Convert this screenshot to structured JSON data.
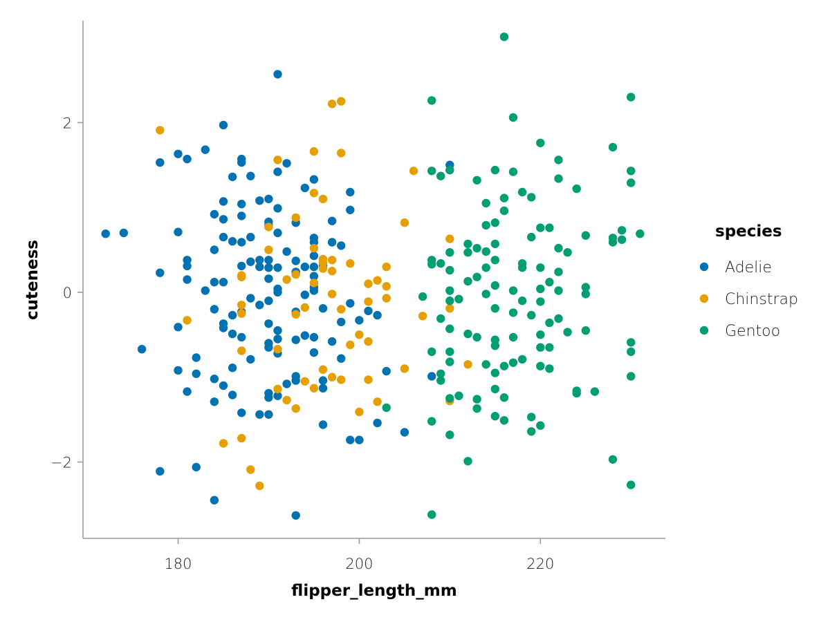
{
  "chart_data": {
    "type": "scatter",
    "xlabel": "flipper_length_mm",
    "ylabel": "cuteness",
    "xlim": [
      169.5,
      233.8
    ],
    "ylim": [
      -2.9,
      3.2
    ],
    "xticks": [
      180,
      200,
      220
    ],
    "yticks": [
      -2,
      0,
      2
    ],
    "xtick_labels": [
      "180",
      "200",
      "220"
    ],
    "ytick_labels": [
      "−2",
      "0",
      "2"
    ],
    "grid": false,
    "legend": {
      "title": "species",
      "placement": "right"
    },
    "series": [
      {
        "name": "Adelie",
        "color": "#0072b2",
        "points": [
          [
            172,
            0.69
          ],
          [
            174,
            0.7
          ],
          [
            176,
            -0.67
          ],
          [
            178,
            0.23
          ],
          [
            178,
            1.53
          ],
          [
            178,
            -2.11
          ],
          [
            180,
            1.63
          ],
          [
            180,
            0.71
          ],
          [
            180,
            -0.41
          ],
          [
            180,
            -0.92
          ],
          [
            181,
            1.57
          ],
          [
            181,
            0.38
          ],
          [
            181,
            0.31
          ],
          [
            181,
            0.15
          ],
          [
            181,
            -1.17
          ],
          [
            182,
            -0.77
          ],
          [
            182,
            -0.96
          ],
          [
            182,
            -2.06
          ],
          [
            183,
            1.68
          ],
          [
            183,
            0.02
          ],
          [
            184,
            0.92
          ],
          [
            184,
            0.5
          ],
          [
            184,
            0.12
          ],
          [
            184,
            -0.2
          ],
          [
            184,
            -1.02
          ],
          [
            184,
            -1.29
          ],
          [
            184,
            -2.45
          ],
          [
            185,
            1.97
          ],
          [
            185,
            1.07
          ],
          [
            185,
            0.86
          ],
          [
            185,
            0.65
          ],
          [
            185,
            0.12
          ],
          [
            185,
            -0.37
          ],
          [
            185,
            -0.42
          ],
          [
            185,
            -1.1
          ],
          [
            186,
            1.36
          ],
          [
            186,
            0.6
          ],
          [
            186,
            -0.27
          ],
          [
            186,
            -0.49
          ],
          [
            186,
            -0.89
          ],
          [
            186,
            -1.21
          ],
          [
            187,
            1.57
          ],
          [
            187,
            1.53
          ],
          [
            187,
            1.04
          ],
          [
            187,
            0.9
          ],
          [
            187,
            0.59
          ],
          [
            187,
            0.31
          ],
          [
            187,
            -0.23
          ],
          [
            187,
            -0.53
          ],
          [
            187,
            -1.42
          ],
          [
            188,
            1.37
          ],
          [
            188,
            0.65
          ],
          [
            188,
            0.36
          ],
          [
            188,
            -0.07
          ],
          [
            188,
            -0.79
          ],
          [
            189,
            1.08
          ],
          [
            189,
            0.38
          ],
          [
            189,
            0.3
          ],
          [
            189,
            -0.15
          ],
          [
            189,
            -1.44
          ],
          [
            190,
            1.1
          ],
          [
            190,
            0.83
          ],
          [
            190,
            0.79
          ],
          [
            190,
            0.38
          ],
          [
            190,
            0.29
          ],
          [
            190,
            0.16
          ],
          [
            190,
            -0.1
          ],
          [
            190,
            -0.37
          ],
          [
            190,
            -0.6
          ],
          [
            190,
            -0.65
          ],
          [
            190,
            -1.19
          ],
          [
            190,
            -1.24
          ],
          [
            190,
            -1.44
          ],
          [
            191,
            2.57
          ],
          [
            191,
            1.42
          ],
          [
            191,
            0.99
          ],
          [
            191,
            0.7
          ],
          [
            191,
            0.29
          ],
          [
            191,
            0.04
          ],
          [
            191,
            0.0
          ],
          [
            191,
            -0.45
          ],
          [
            191,
            -0.55
          ],
          [
            191,
            -0.72
          ],
          [
            191,
            -1.22
          ],
          [
            192,
            1.52
          ],
          [
            192,
            0.48
          ],
          [
            192,
            -1.08
          ],
          [
            193,
            0.82
          ],
          [
            193,
            0.37
          ],
          [
            193,
            0.24
          ],
          [
            193,
            0.23
          ],
          [
            193,
            -0.23
          ],
          [
            193,
            -0.56
          ],
          [
            193,
            -0.99
          ],
          [
            193,
            -1.04
          ],
          [
            193,
            -2.63
          ],
          [
            194,
            1.23
          ],
          [
            194,
            0.3
          ],
          [
            194,
            -0.03
          ],
          [
            194,
            -0.51
          ],
          [
            195,
            1.33
          ],
          [
            195,
            0.64
          ],
          [
            195,
            0.59
          ],
          [
            195,
            0.43
          ],
          [
            195,
            0.3
          ],
          [
            195,
            0.19
          ],
          [
            195,
            0.06
          ],
          [
            195,
            0.02
          ],
          [
            195,
            -0.53
          ],
          [
            195,
            -0.71
          ],
          [
            196,
            0.31
          ],
          [
            196,
            -0.19
          ],
          [
            196,
            -1.04
          ],
          [
            196,
            -1.13
          ],
          [
            196,
            -1.56
          ],
          [
            197,
            0.84
          ],
          [
            197,
            0.59
          ],
          [
            197,
            -0.58
          ],
          [
            198,
            0.55
          ],
          [
            198,
            -0.35
          ],
          [
            198,
            -0.78
          ],
          [
            199,
            1.18
          ],
          [
            199,
            0.97
          ],
          [
            199,
            -0.13
          ],
          [
            199,
            -1.74
          ],
          [
            200,
            -0.33
          ],
          [
            200,
            -1.74
          ],
          [
            201,
            -0.22
          ],
          [
            202,
            -0.27
          ],
          [
            202,
            -1.54
          ],
          [
            203,
            -0.93
          ],
          [
            205,
            -1.65
          ],
          [
            208,
            -0.99
          ],
          [
            210,
            1.5
          ]
        ]
      },
      {
        "name": "Chinstrap",
        "color": "#e69f00",
        "points": [
          [
            178,
            1.91
          ],
          [
            181,
            -0.33
          ],
          [
            185,
            -1.78
          ],
          [
            187,
            0.2
          ],
          [
            187,
            0.18
          ],
          [
            187,
            -0.15
          ],
          [
            187,
            -0.25
          ],
          [
            187,
            -0.69
          ],
          [
            187,
            -1.72
          ],
          [
            188,
            -2.09
          ],
          [
            189,
            -2.28
          ],
          [
            190,
            0.77
          ],
          [
            190,
            0.5
          ],
          [
            191,
            1.56
          ],
          [
            191,
            -0.67
          ],
          [
            191,
            -1.14
          ],
          [
            192,
            0.15
          ],
          [
            192,
            -1.27
          ],
          [
            193,
            0.88
          ],
          [
            193,
            0.21
          ],
          [
            193,
            -0.26
          ],
          [
            193,
            -1.37
          ],
          [
            194,
            -0.18
          ],
          [
            194,
            -1.05
          ],
          [
            195,
            1.66
          ],
          [
            195,
            1.17
          ],
          [
            195,
            0.52
          ],
          [
            195,
            0.11
          ],
          [
            195,
            -1.13
          ],
          [
            196,
            1.1
          ],
          [
            196,
            0.39
          ],
          [
            196,
            0.35
          ],
          [
            196,
            0.28
          ],
          [
            196,
            -0.91
          ],
          [
            197,
            0.38
          ],
          [
            197,
            0.25
          ],
          [
            197,
            -0.02
          ],
          [
            197,
            -1.0
          ],
          [
            198,
            2.25
          ],
          [
            198,
            1.64
          ],
          [
            198,
            -0.2
          ],
          [
            198,
            -1.03
          ],
          [
            197,
            2.22
          ],
          [
            199,
            0.34
          ],
          [
            199,
            -0.62
          ],
          [
            200,
            -0.5
          ],
          [
            200,
            -1.41
          ],
          [
            201,
            0.1
          ],
          [
            201,
            -0.11
          ],
          [
            201,
            -0.58
          ],
          [
            201,
            -1.03
          ],
          [
            202,
            0.14
          ],
          [
            202,
            -1.29
          ],
          [
            203,
            0.3
          ],
          [
            203,
            0.07
          ],
          [
            203,
            -0.07
          ],
          [
            205,
            0.82
          ],
          [
            205,
            -0.9
          ],
          [
            206,
            1.43
          ],
          [
            207,
            -0.28
          ],
          [
            210,
            0.63
          ],
          [
            210,
            -0.19
          ],
          [
            210,
            -1.28
          ],
          [
            212,
            -0.85
          ]
        ]
      },
      {
        "name": "Gentoo",
        "color": "#009e73",
        "points": [
          [
            203,
            -1.36
          ],
          [
            207,
            -0.05
          ],
          [
            208,
            2.26
          ],
          [
            208,
            1.43
          ],
          [
            208,
            0.38
          ],
          [
            208,
            0.33
          ],
          [
            208,
            -0.7
          ],
          [
            208,
            -1.52
          ],
          [
            208,
            -2.62
          ],
          [
            209,
            1.37
          ],
          [
            209,
            0.34
          ],
          [
            209,
            -0.31
          ],
          [
            209,
            -0.96
          ],
          [
            209,
            -1.04
          ],
          [
            210,
            1.44
          ],
          [
            210,
            0.47
          ],
          [
            210,
            0.26
          ],
          [
            210,
            0.02
          ],
          [
            210,
            -0.1
          ],
          [
            210,
            -0.43
          ],
          [
            210,
            -0.7
          ],
          [
            210,
            -0.82
          ],
          [
            210,
            -1.25
          ],
          [
            210,
            -1.68
          ],
          [
            211,
            -0.08
          ],
          [
            211,
            -1.22
          ],
          [
            212,
            0.57
          ],
          [
            212,
            0.47
          ],
          [
            212,
            0.13
          ],
          [
            212,
            -0.49
          ],
          [
            212,
            -1.99
          ],
          [
            213,
            1.32
          ],
          [
            213,
            0.52
          ],
          [
            213,
            0.18
          ],
          [
            213,
            -0.53
          ],
          [
            213,
            -1.26
          ],
          [
            213,
            -1.37
          ],
          [
            214,
            1.05
          ],
          [
            214,
            0.79
          ],
          [
            214,
            0.48
          ],
          [
            214,
            0.29
          ],
          [
            214,
            -0.02
          ],
          [
            214,
            -0.85
          ],
          [
            215,
            1.44
          ],
          [
            215,
            0.82
          ],
          [
            215,
            0.57
          ],
          [
            215,
            0.38
          ],
          [
            215,
            0.08
          ],
          [
            215,
            -0.19
          ],
          [
            215,
            -0.56
          ],
          [
            215,
            -0.63
          ],
          [
            215,
            -0.95
          ],
          [
            215,
            -1.14
          ],
          [
            215,
            -1.46
          ],
          [
            216,
            3.01
          ],
          [
            216,
            1.11
          ],
          [
            216,
            0.96
          ],
          [
            216,
            -0.87
          ],
          [
            216,
            -1.24
          ],
          [
            216,
            -1.51
          ],
          [
            217,
            2.06
          ],
          [
            217,
            1.42
          ],
          [
            217,
            0.02
          ],
          [
            217,
            -0.24
          ],
          [
            217,
            -0.53
          ],
          [
            217,
            -0.83
          ],
          [
            218,
            1.18
          ],
          [
            218,
            0.34
          ],
          [
            218,
            0.29
          ],
          [
            218,
            -0.1
          ],
          [
            218,
            -0.79
          ],
          [
            219,
            1.12
          ],
          [
            219,
            0.65
          ],
          [
            219,
            -0.27
          ],
          [
            219,
            -1.47
          ],
          [
            219,
            -1.64
          ],
          [
            220,
            1.76
          ],
          [
            220,
            0.76
          ],
          [
            220,
            0.29
          ],
          [
            220,
            0.04
          ],
          [
            220,
            -0.11
          ],
          [
            220,
            -0.5
          ],
          [
            220,
            -0.65
          ],
          [
            220,
            -0.87
          ],
          [
            220,
            -1.57
          ],
          [
            221,
            0.76
          ],
          [
            221,
            0.12
          ],
          [
            221,
            -0.36
          ],
          [
            221,
            -0.65
          ],
          [
            221,
            -0.9
          ],
          [
            222,
            1.56
          ],
          [
            222,
            1.34
          ],
          [
            222,
            0.52
          ],
          [
            222,
            0.24
          ],
          [
            222,
            0.02
          ],
          [
            222,
            -0.31
          ],
          [
            223,
            0.47
          ],
          [
            223,
            -0.47
          ],
          [
            224,
            1.22
          ],
          [
            224,
            -1.16
          ],
          [
            224,
            -1.19
          ],
          [
            225,
            0.67
          ],
          [
            225,
            0.06
          ],
          [
            225,
            -0.02
          ],
          [
            225,
            -0.45
          ],
          [
            226,
            -1.17
          ],
          [
            228,
            1.71
          ],
          [
            228,
            0.64
          ],
          [
            228,
            0.59
          ],
          [
            228,
            -1.97
          ],
          [
            229,
            0.73
          ],
          [
            229,
            0.62
          ],
          [
            230,
            2.3
          ],
          [
            230,
            1.43
          ],
          [
            230,
            1.29
          ],
          [
            230,
            -0.59
          ],
          [
            230,
            -0.7
          ],
          [
            230,
            -0.99
          ],
          [
            230,
            -2.27
          ],
          [
            231,
            0.69
          ]
        ]
      }
    ]
  }
}
